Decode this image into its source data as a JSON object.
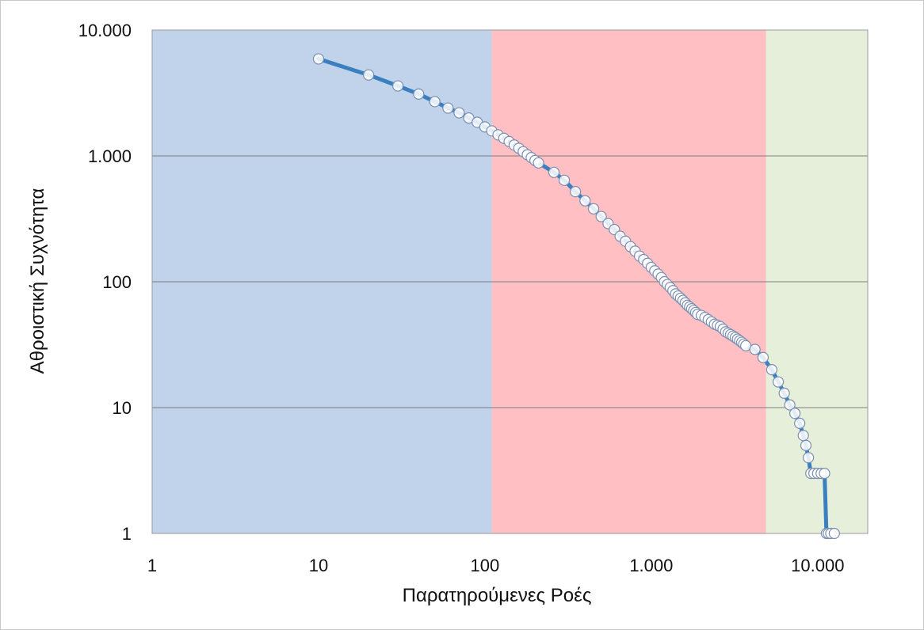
{
  "chart_data": {
    "type": "line",
    "title": "",
    "xlabel": "Παρατηρούμενες Ροές",
    "ylabel": "Αθροιστική Συχνότητα",
    "x_scale": "log",
    "y_scale": "log",
    "xlim": [
      1,
      20000
    ],
    "ylim": [
      1,
      10000
    ],
    "grid": {
      "horizontal": true,
      "vertical": false
    },
    "legend": "none",
    "x_ticks": [
      {
        "value": 1,
        "label": "1"
      },
      {
        "value": 10,
        "label": "10"
      },
      {
        "value": 100,
        "label": "100"
      },
      {
        "value": 1000,
        "label": "1.000"
      },
      {
        "value": 10000,
        "label": "10.000"
      }
    ],
    "y_ticks": [
      {
        "value": 1,
        "label": "1"
      },
      {
        "value": 10,
        "label": "10"
      },
      {
        "value": 100,
        "label": "100"
      },
      {
        "value": 1000,
        "label": "1.000"
      },
      {
        "value": 10000,
        "label": "10.000"
      }
    ],
    "regions": [
      {
        "from": 1,
        "to": 110,
        "color": "#c0d3ea"
      },
      {
        "from": 110,
        "to": 4900,
        "color": "#ffbfc3"
      },
      {
        "from": 4900,
        "to": 20000,
        "color": "#e6efd9"
      }
    ],
    "series": [
      {
        "line_color": "#3a7fbf",
        "marker_fill": "#ffffff",
        "x": [
          10,
          20,
          30,
          40,
          50,
          60,
          70,
          80,
          90,
          100,
          110,
          120,
          130,
          140,
          150,
          160,
          170,
          180,
          190,
          200,
          210,
          260,
          300,
          350,
          400,
          450,
          500,
          550,
          600,
          650,
          700,
          750,
          800,
          850,
          900,
          950,
          1000,
          1050,
          1100,
          1150,
          1200,
          1250,
          1300,
          1350,
          1400,
          1450,
          1500,
          1550,
          1600,
          1650,
          1700,
          1750,
          1800,
          1850,
          1900,
          2000,
          2100,
          2200,
          2300,
          2400,
          2500,
          2600,
          2700,
          2800,
          2900,
          3000,
          3100,
          3200,
          3300,
          3400,
          3500,
          3600,
          3700,
          4200,
          4700,
          5300,
          5800,
          6300,
          6800,
          7300,
          7800,
          8200,
          8500,
          8800,
          9100,
          9500,
          10000,
          10500,
          11000,
          11300,
          11600,
          12000,
          12600
        ],
        "y": [
          5900,
          4400,
          3600,
          3100,
          2700,
          2400,
          2200,
          2000,
          1850,
          1700,
          1580,
          1470,
          1380,
          1300,
          1220,
          1150,
          1080,
          1020,
          970,
          920,
          880,
          740,
          640,
          520,
          440,
          380,
          330,
          290,
          260,
          230,
          210,
          190,
          175,
          160,
          150,
          140,
          130,
          122,
          115,
          108,
          100,
          95,
          90,
          85,
          80,
          77,
          74,
          71,
          68,
          65,
          63,
          61,
          59,
          57,
          55,
          54,
          52,
          50,
          48,
          46,
          45,
          44,
          42,
          40,
          39,
          38,
          37,
          36,
          35,
          34,
          33,
          32,
          31,
          29,
          25,
          20,
          16,
          13,
          10.5,
          9,
          7.5,
          6,
          5,
          4,
          3,
          3,
          3,
          3,
          3,
          1,
          1,
          1,
          1
        ]
      }
    ]
  }
}
